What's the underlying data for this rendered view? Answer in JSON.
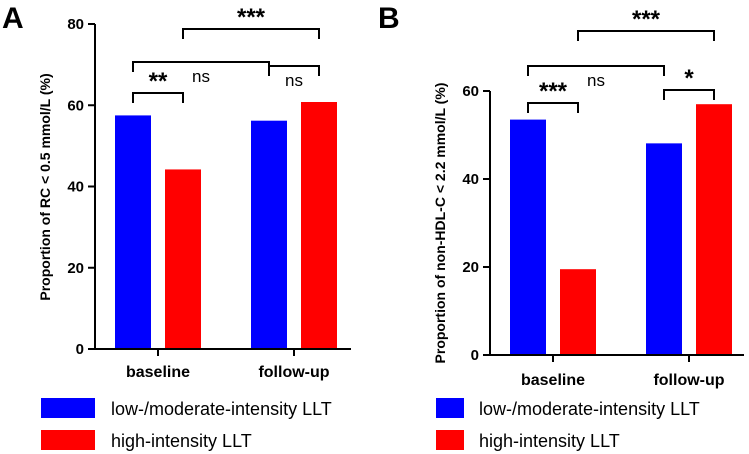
{
  "colors": {
    "low_moderate": "#0000ff",
    "high": "#ff0000",
    "axis": "#000000"
  },
  "legend": [
    {
      "key": "low_moderate",
      "label": "low-/moderate-intensity LLT"
    },
    {
      "key": "high",
      "label": "high-intensity LLT"
    }
  ],
  "chart_data": [
    {
      "type": "bar",
      "panel": "A",
      "title": "",
      "xlabel": "",
      "ylabel": "Proportion of RC < 0.5 mmol/L (%)",
      "ylim": [
        0,
        80
      ],
      "yticks": [
        0,
        20,
        40,
        60,
        80
      ],
      "categories": [
        "baseline",
        "follow-up"
      ],
      "series": [
        {
          "name": "low-/moderate-intensity LLT",
          "color_key": "low_moderate",
          "values": [
            57.5,
            56.2
          ]
        },
        {
          "name": "high-intensity LLT",
          "color_key": "high",
          "values": [
            44.2,
            60.8
          ]
        }
      ],
      "annotations": [
        {
          "label": "**",
          "from": [
            0,
            0
          ],
          "to": [
            0,
            1
          ]
        },
        {
          "label": "ns",
          "from": [
            1,
            0
          ],
          "to": [
            1,
            1
          ]
        },
        {
          "label": "ns",
          "from": [
            0,
            0
          ],
          "to": [
            1,
            0
          ]
        },
        {
          "label": "***",
          "from": [
            0,
            1
          ],
          "to": [
            1,
            1
          ]
        }
      ]
    },
    {
      "type": "bar",
      "panel": "B",
      "title": "",
      "xlabel": "",
      "ylabel": "Proportion of non-HDL-C < 2.2 mmol/L (%)",
      "ylim": [
        0,
        60
      ],
      "yticks": [
        0,
        20,
        40,
        60
      ],
      "categories": [
        "baseline",
        "follow-up"
      ],
      "series": [
        {
          "name": "low-/moderate-intensity LLT",
          "color_key": "low_moderate",
          "values": [
            53.5,
            48.1
          ]
        },
        {
          "name": "high-intensity LLT",
          "color_key": "high",
          "values": [
            19.5,
            57.0
          ]
        }
      ],
      "annotations": [
        {
          "label": "***",
          "from": [
            0,
            0
          ],
          "to": [
            0,
            1
          ]
        },
        {
          "label": "*",
          "from": [
            1,
            0
          ],
          "to": [
            1,
            1
          ]
        },
        {
          "label": "ns",
          "from": [
            0,
            0
          ],
          "to": [
            1,
            0
          ]
        },
        {
          "label": "***",
          "from": [
            0,
            1
          ],
          "to": [
            1,
            1
          ]
        }
      ]
    }
  ]
}
